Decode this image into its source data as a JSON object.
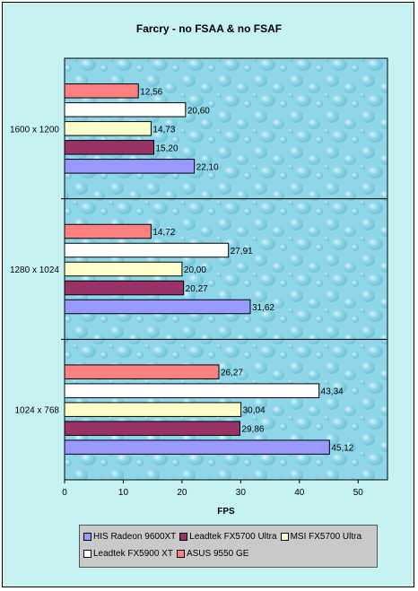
{
  "chart_data": {
    "type": "bar",
    "orientation": "horizontal",
    "title": "Farcry - no FSAA & no FSAF",
    "xlabel": "FPS",
    "ylabel": "",
    "xlim": [
      0,
      55
    ],
    "x_ticks": [
      "0",
      "10",
      "20",
      "30",
      "40",
      "50"
    ],
    "categories": [
      "1600 x 1200",
      "1280 x 1024",
      "1024 x 768"
    ],
    "series": [
      {
        "name": "HIS Radeon 9600XT",
        "color": "#9999ff",
        "values": [
          22.1,
          31.62,
          45.12
        ],
        "labels": [
          "22,10",
          "31,62",
          "45,12"
        ]
      },
      {
        "name": "Leadtek FX5700 Ultra",
        "color": "#993366",
        "values": [
          15.2,
          20.27,
          29.86
        ],
        "labels": [
          "15,20",
          "20,27",
          "29,86"
        ]
      },
      {
        "name": "MSI FX5700 Ultra",
        "color": "#ffffcc",
        "values": [
          14.73,
          20.0,
          30.04
        ],
        "labels": [
          "14,73",
          "20,00",
          "30,04"
        ]
      },
      {
        "name": "Leadtek FX5900 XT",
        "color": "#ffffff",
        "values": [
          20.6,
          27.91,
          43.34
        ],
        "labels": [
          "20,60",
          "27,91",
          "43,34"
        ]
      },
      {
        "name": "ASUS 9550 GE",
        "color": "#ff8080",
        "values": [
          12.56,
          14.72,
          26.27
        ],
        "labels": [
          "12,56",
          "14,72",
          "26,27"
        ]
      }
    ],
    "grid": false,
    "legend_position": "bottom"
  }
}
